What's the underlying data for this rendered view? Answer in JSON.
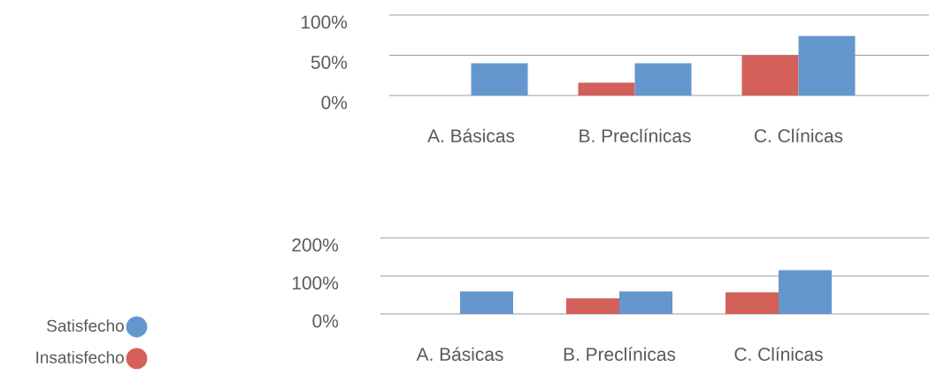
{
  "chart_data": [
    {
      "type": "bar",
      "categories": [
        "A. Básicas",
        "B. Preclínicas",
        "C. Clínicas"
      ],
      "series": [
        {
          "color": "#d4605a",
          "values": [
            0,
            16,
            50
          ]
        },
        {
          "color": "#6497cd",
          "values": [
            40,
            40,
            74
          ]
        }
      ],
      "ylim": [
        0,
        100
      ],
      "yticks": [
        {
          "value": 0,
          "label": "0%"
        },
        {
          "value": 50,
          "label": "50%"
        },
        {
          "value": 100,
          "label": "100%"
        }
      ],
      "grid": "y"
    },
    {
      "type": "bar",
      "categories": [
        "A. Básicas",
        "B. Preclínicas",
        "C. Clínicas"
      ],
      "series": [
        {
          "name": "Insatisfecho",
          "color": "#d4605a",
          "values": [
            0,
            41,
            57
          ]
        },
        {
          "name": "Satisfecho",
          "color": "#6497cd",
          "values": [
            59,
            59,
            115
          ]
        }
      ],
      "ylim": [
        0,
        200
      ],
      "yticks": [
        {
          "value": 0,
          "label": "0%"
        },
        {
          "value": 100,
          "label": "100%"
        },
        {
          "value": 200,
          "label": "200%"
        }
      ],
      "grid": "y",
      "legend": "bottom left"
    }
  ]
}
